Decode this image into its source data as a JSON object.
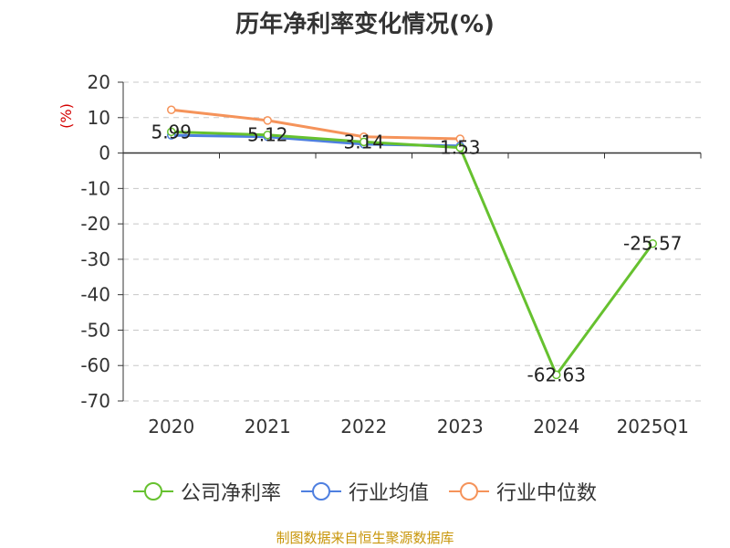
{
  "chart_data": {
    "type": "line",
    "title": "历年净利率变化情况(%)",
    "ylabel": "(%)",
    "xlabel": "",
    "categories": [
      "2020",
      "2021",
      "2022",
      "2023",
      "2024",
      "2025Q1"
    ],
    "ylim": [
      -70,
      20
    ],
    "yticks": [
      20,
      10,
      0,
      -10,
      -20,
      -30,
      -40,
      -50,
      -60,
      -70
    ],
    "grid": true,
    "legend_position": "bottom",
    "series": [
      {
        "name": "公司净利率",
        "color": "#66c12f",
        "values": [
          5.99,
          5.12,
          3.14,
          1.53,
          -62.63,
          -25.57
        ],
        "labels": [
          "5.99",
          "5.12",
          "3.14",
          "1.53",
          "-62.63",
          "-25.57"
        ]
      },
      {
        "name": "行业均值",
        "color": "#4e7fe0",
        "values": [
          5.0,
          4.6,
          2.5,
          2.0,
          null,
          null
        ]
      },
      {
        "name": "行业中位数",
        "color": "#f5935a",
        "values": [
          12.2,
          9.2,
          4.6,
          4.0,
          null,
          null
        ]
      }
    ]
  },
  "footer": {
    "source": "制图数据来自恒生聚源数据库"
  }
}
